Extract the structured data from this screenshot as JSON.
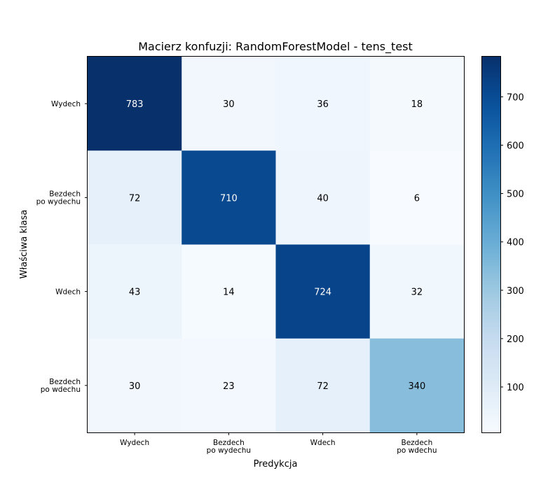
{
  "chart_data": {
    "type": "heatmap",
    "title": "Macierz konfuzji: RandomForestModel - tens_test",
    "xlabel": "Predykcja",
    "ylabel": "Właściwa klasa",
    "x_categories": [
      [
        "Wydech"
      ],
      [
        "Bezdech",
        "po wydechu"
      ],
      [
        "Wdech"
      ],
      [
        "Bezdech",
        "po wdechu"
      ]
    ],
    "y_categories": [
      [
        "Wydech"
      ],
      [
        "Bezdech",
        "po wydechu"
      ],
      [
        "Wdech"
      ],
      [
        "Bezdech",
        "po wdechu"
      ]
    ],
    "matrix": [
      [
        783,
        30,
        36,
        18
      ],
      [
        72,
        710,
        40,
        6
      ],
      [
        43,
        14,
        724,
        32
      ],
      [
        30,
        23,
        72,
        340
      ]
    ],
    "colormap": "Blues",
    "colorbar": {
      "min": 6,
      "max": 783,
      "ticks": [
        100,
        200,
        300,
        400,
        500,
        600,
        700
      ]
    },
    "grid": false,
    "legend": "colorbar-right"
  }
}
